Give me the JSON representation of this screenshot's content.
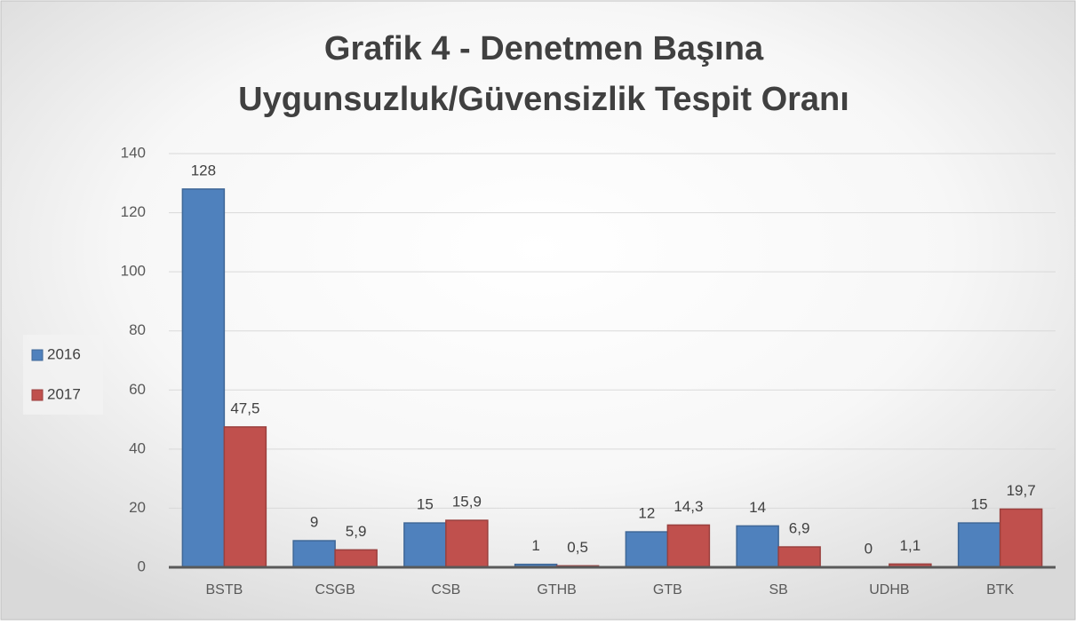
{
  "chart_data": {
    "type": "bar",
    "title": [
      "Grafik 4 - Denetmen Başına",
      "Uygunsuzluk/Güvensizlik Tespit Oranı"
    ],
    "categories": [
      "BSTB",
      "CSGB",
      "CSB",
      "GTHB",
      "GTB",
      "SB",
      "UDHB",
      "BTK"
    ],
    "series": [
      {
        "name": "2016",
        "color": "#4f81bd",
        "values": [
          128,
          9,
          15,
          1,
          12,
          14,
          0,
          15
        ]
      },
      {
        "name": "2017",
        "color": "#c0504d",
        "values": [
          47.5,
          5.9,
          15.9,
          0.5,
          14.3,
          6.9,
          1.1,
          19.7
        ],
        "value_labels": [
          "47,5",
          "5,9",
          "15,9",
          "0,5",
          "14,3",
          "6,9",
          "1,1",
          "19,7"
        ]
      }
    ],
    "ylim": [
      0,
      140
    ],
    "yticks": [
      0,
      20,
      40,
      60,
      80,
      100,
      120,
      140
    ],
    "grid": true,
    "legend": "left"
  }
}
